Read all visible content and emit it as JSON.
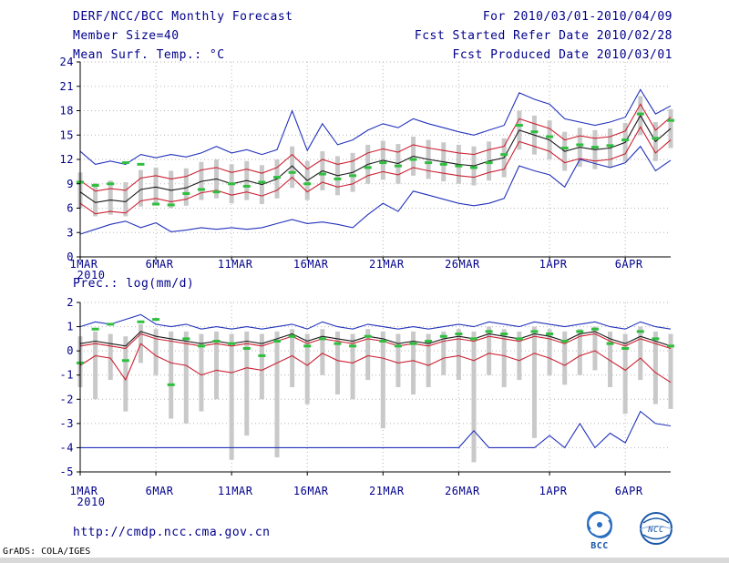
{
  "header": {
    "left": [
      "DERF/NCC/BCC Monthly Forecast",
      "Member Size=40",
      "Mean Surf. Temp.: °C"
    ],
    "right": [
      "For 2010/03/01-2010/04/09",
      "Fcst Started Refer Date 2010/02/28",
      "Fcst Produced Date 2010/03/01"
    ]
  },
  "panel2_title": "Prec.: log(mm/d)",
  "footer": {
    "url": "http://cmdp.ncc.cma.gov.cn",
    "credit": "GrADS: COLA/IGES",
    "bcc_label": "BCC",
    "ncc_label": "NCC"
  },
  "colors": {
    "blue": "#2233bb",
    "red": "#cc2233",
    "black": "#1a1a1a",
    "green": "#2fbf3f",
    "gray": "#c9c9c9",
    "text": "#00008b"
  },
  "chart_data": [
    {
      "type": "line",
      "title": "Mean Surf. Temp.: °C",
      "xlabel": "",
      "ylabel": "°C",
      "date_range": "2010/03/01-2010/04/09",
      "n_days": 40,
      "ylim": [
        0,
        24
      ],
      "yticks": [
        0,
        3,
        6,
        9,
        12,
        15,
        18,
        21,
        24
      ],
      "x_labels": [
        {
          "day": 1,
          "label": "1MAR",
          "sub": "2010"
        },
        {
          "day": 6,
          "label": "6MAR"
        },
        {
          "day": 11,
          "label": "11MAR"
        },
        {
          "day": 16,
          "label": "16MAR"
        },
        {
          "day": 21,
          "label": "21MAR"
        },
        {
          "day": 26,
          "label": "26MAR"
        },
        {
          "day": 32,
          "label": "1APR"
        },
        {
          "day": 37,
          "label": "6APR"
        }
      ],
      "grid": true,
      "legend": "none",
      "series": [
        {
          "name": "ensemble-max",
          "color": "blue",
          "values": [
            13.0,
            11.4,
            11.8,
            11.4,
            12.6,
            12.2,
            12.6,
            12.3,
            12.8,
            13.6,
            12.8,
            13.2,
            12.6,
            13.2,
            18.0,
            13.1,
            16.4,
            13.8,
            14.4,
            15.6,
            16.4,
            15.9,
            17.0,
            16.4,
            15.9,
            15.4,
            15.0,
            15.6,
            16.2,
            20.2,
            19.4,
            18.8,
            17.0,
            16.6,
            16.2,
            16.6,
            17.2,
            20.6,
            17.6,
            18.6
          ]
        },
        {
          "name": "upper-quartile",
          "color": "red",
          "values": [
            9.4,
            8.1,
            8.4,
            8.2,
            9.7,
            10.0,
            9.6,
            9.9,
            10.7,
            11.0,
            10.4,
            10.8,
            10.3,
            11.0,
            12.6,
            10.8,
            12.0,
            11.4,
            11.8,
            12.8,
            13.3,
            12.9,
            13.8,
            13.4,
            13.1,
            12.8,
            12.6,
            13.2,
            13.6,
            17.0,
            16.4,
            15.8,
            14.4,
            14.9,
            14.6,
            14.8,
            15.5,
            18.8,
            15.6,
            17.2
          ]
        },
        {
          "name": "ensemble-mean",
          "color": "black",
          "values": [
            8.0,
            6.7,
            7.0,
            6.8,
            8.3,
            8.6,
            8.2,
            8.5,
            9.3,
            9.6,
            9.0,
            9.4,
            8.9,
            9.6,
            11.2,
            9.4,
            10.6,
            10.0,
            10.4,
            11.4,
            11.9,
            11.5,
            12.4,
            12.0,
            11.7,
            11.4,
            11.2,
            11.8,
            12.2,
            15.6,
            15.0,
            14.4,
            13.0,
            13.5,
            13.2,
            13.4,
            14.1,
            17.4,
            14.2,
            15.8
          ]
        },
        {
          "name": "lower-quartile",
          "color": "red",
          "values": [
            6.6,
            5.3,
            5.6,
            5.4,
            6.9,
            7.2,
            6.8,
            7.1,
            7.9,
            8.2,
            7.6,
            8.0,
            7.5,
            8.2,
            9.8,
            8.0,
            9.2,
            8.6,
            9.0,
            10.0,
            10.5,
            10.1,
            11.0,
            10.6,
            10.3,
            10.0,
            9.8,
            10.4,
            10.8,
            14.2,
            13.6,
            13.0,
            11.6,
            12.1,
            11.8,
            12.0,
            12.7,
            16.0,
            12.8,
            14.4
          ]
        },
        {
          "name": "ensemble-min",
          "color": "blue",
          "values": [
            2.8,
            3.4,
            4.0,
            4.4,
            3.6,
            4.2,
            3.1,
            3.3,
            3.6,
            3.4,
            3.6,
            3.4,
            3.6,
            4.1,
            4.6,
            4.1,
            4.3,
            4.0,
            3.6,
            5.2,
            6.6,
            5.6,
            8.1,
            7.6,
            7.1,
            6.6,
            6.3,
            6.6,
            7.2,
            11.2,
            10.6,
            10.1,
            8.6,
            12.0,
            11.5,
            11.0,
            11.6,
            13.6,
            10.6,
            11.9
          ]
        }
      ],
      "spread_bars": {
        "low": [
          6.0,
          5.0,
          5.2,
          5.0,
          6.2,
          6.5,
          6.0,
          6.3,
          7.0,
          7.2,
          6.6,
          7.0,
          6.5,
          7.2,
          8.5,
          7.0,
          8.2,
          7.6,
          8.0,
          9.0,
          9.5,
          9.0,
          10.0,
          9.6,
          9.3,
          9.0,
          8.8,
          9.4,
          9.8,
          13.2,
          12.6,
          12.0,
          10.6,
          11.1,
          10.8,
          11.0,
          11.7,
          15.0,
          11.8,
          13.4
        ],
        "high": [
          10.4,
          9.1,
          9.4,
          9.2,
          10.7,
          11.0,
          10.6,
          10.9,
          11.7,
          12.0,
          11.4,
          11.8,
          11.3,
          12.0,
          13.6,
          11.8,
          13.0,
          12.4,
          12.8,
          13.8,
          14.3,
          13.9,
          14.8,
          14.4,
          14.1,
          13.8,
          13.6,
          14.2,
          14.6,
          18.0,
          17.4,
          16.8,
          15.4,
          15.9,
          15.6,
          15.8,
          16.5,
          19.8,
          16.6,
          18.2
        ]
      },
      "observations": {
        "name": "obs-green-dash",
        "color": "green",
        "values": [
          9.2,
          8.8,
          9.0,
          11.6,
          11.4,
          6.5,
          6.4,
          7.8,
          8.3,
          8.0,
          9.0,
          8.7,
          9.2,
          9.8,
          10.4,
          9.0,
          10.2,
          9.6,
          10.0,
          11.0,
          11.6,
          11.2,
          12.0,
          11.6,
          11.4,
          11.2,
          11.0,
          11.6,
          12.6,
          16.2,
          15.4,
          14.8,
          13.4,
          13.8,
          13.5,
          13.7,
          14.4,
          17.6,
          14.6,
          16.8
        ]
      }
    },
    {
      "type": "line",
      "title": "Prec.: log(mm/d)",
      "xlabel": "",
      "ylabel": "log(mm/d)",
      "date_range": "2010/03/01-2010/04/09",
      "n_days": 40,
      "ylim": [
        -5,
        2
      ],
      "yticks": [
        -5,
        -4,
        -3,
        -2,
        -1,
        0,
        1,
        2
      ],
      "x_labels": [
        {
          "day": 1,
          "label": "1MAR",
          "sub": "2010"
        },
        {
          "day": 6,
          "label": "6MAR"
        },
        {
          "day": 11,
          "label": "11MAR"
        },
        {
          "day": 16,
          "label": "16MAR"
        },
        {
          "day": 21,
          "label": "21MAR"
        },
        {
          "day": 26,
          "label": "26MAR"
        },
        {
          "day": 32,
          "label": "1APR"
        },
        {
          "day": 37,
          "label": "6APR"
        }
      ],
      "grid": true,
      "legend": "none",
      "series": [
        {
          "name": "ensemble-max",
          "color": "blue",
          "values": [
            1.0,
            1.2,
            1.1,
            1.3,
            1.5,
            1.1,
            1.0,
            1.1,
            0.9,
            1.0,
            0.9,
            1.0,
            0.9,
            1.0,
            1.1,
            0.9,
            1.2,
            1.0,
            0.9,
            1.1,
            1.0,
            0.9,
            1.0,
            0.9,
            1.0,
            1.1,
            1.0,
            1.2,
            1.1,
            1.0,
            1.2,
            1.1,
            1.0,
            1.1,
            1.2,
            1.0,
            0.9,
            1.2,
            1.0,
            0.9
          ]
        },
        {
          "name": "upper-quartile",
          "color": "red",
          "values": [
            0.2,
            0.3,
            0.2,
            0.1,
            0.7,
            0.5,
            0.4,
            0.3,
            0.2,
            0.3,
            0.2,
            0.3,
            0.2,
            0.4,
            0.6,
            0.3,
            0.5,
            0.4,
            0.3,
            0.5,
            0.4,
            0.2,
            0.3,
            0.2,
            0.4,
            0.5,
            0.4,
            0.6,
            0.5,
            0.4,
            0.6,
            0.5,
            0.3,
            0.6,
            0.7,
            0.4,
            0.2,
            0.5,
            0.3,
            0.1
          ]
        },
        {
          "name": "ensemble-mean",
          "color": "black",
          "values": [
            0.3,
            0.4,
            0.3,
            0.2,
            0.8,
            0.6,
            0.5,
            0.4,
            0.3,
            0.4,
            0.3,
            0.4,
            0.3,
            0.5,
            0.7,
            0.4,
            0.6,
            0.5,
            0.4,
            0.6,
            0.5,
            0.3,
            0.4,
            0.3,
            0.5,
            0.6,
            0.5,
            0.7,
            0.6,
            0.5,
            0.7,
            0.6,
            0.4,
            0.7,
            0.8,
            0.5,
            0.3,
            0.6,
            0.4,
            0.2
          ]
        },
        {
          "name": "lower-quartile",
          "color": "red",
          "values": [
            -0.6,
            -0.2,
            -0.3,
            -1.2,
            0.3,
            -0.2,
            -0.5,
            -0.6,
            -1.0,
            -0.8,
            -0.9,
            -0.7,
            -0.8,
            -0.5,
            -0.2,
            -0.6,
            -0.1,
            -0.4,
            -0.5,
            -0.2,
            -0.3,
            -0.5,
            -0.4,
            -0.6,
            -0.3,
            -0.2,
            -0.4,
            -0.1,
            -0.2,
            -0.4,
            -0.1,
            -0.3,
            -0.6,
            -0.2,
            0,
            -0.4,
            -0.8,
            -0.3,
            -0.9,
            -1.3
          ]
        },
        {
          "name": "ensemble-min",
          "color": "blue",
          "values": [
            -4,
            -4,
            -4,
            -4,
            -4,
            -4,
            -4,
            -4,
            -4,
            -4,
            -4,
            -4,
            -4,
            -4,
            -4,
            -4,
            -4,
            -4,
            -4,
            -4,
            -4,
            -4,
            -4,
            -4,
            -4,
            -4,
            -3.3,
            -4,
            -4,
            -4,
            -4,
            -3.5,
            -4,
            -3,
            -4,
            -3.4,
            -3.8,
            -2.5,
            -3,
            -3.1
          ]
        }
      ],
      "spread_bars": {
        "low": [
          -1.5,
          -2.0,
          -1.2,
          -2.5,
          -0.5,
          -1.0,
          -2.8,
          -3.0,
          -2.5,
          -2.0,
          -4.5,
          -3.5,
          -2.0,
          -4.4,
          -1.5,
          -2.2,
          -1.0,
          -1.8,
          -2.0,
          -1.2,
          -3.2,
          -1.5,
          -1.8,
          -1.5,
          -1.0,
          -1.2,
          -4.6,
          -1.0,
          -1.5,
          -1.2,
          -3.6,
          -1.0,
          -1.4,
          -1.0,
          -0.8,
          -1.5,
          -2.6,
          -1.2,
          -2.2,
          -2.4
        ],
        "high": [
          0.6,
          0.8,
          0.7,
          0.6,
          1.1,
          0.9,
          0.8,
          0.8,
          0.7,
          0.8,
          0.7,
          0.8,
          0.7,
          0.8,
          0.9,
          0.7,
          0.9,
          0.8,
          0.7,
          0.9,
          0.8,
          0.7,
          0.8,
          0.7,
          0.8,
          0.9,
          0.8,
          1.0,
          0.9,
          0.8,
          1.0,
          0.9,
          0.8,
          0.9,
          1.0,
          0.8,
          0.7,
          1.0,
          0.8,
          0.7
        ]
      },
      "observations": {
        "name": "obs-green-dash",
        "color": "green",
        "values": [
          -0.5,
          0.9,
          1.1,
          -0.4,
          1.2,
          1.3,
          -1.4,
          0.5,
          0.2,
          0.4,
          0.3,
          0.1,
          -0.2,
          0.4,
          0.6,
          0.2,
          0.5,
          0.3,
          0.2,
          0.6,
          0.4,
          0.2,
          0.3,
          0.4,
          0.6,
          0.7,
          0.5,
          0.8,
          0.7,
          0.5,
          0.8,
          0.7,
          0.4,
          0.8,
          0.9,
          0.3,
          0.1,
          0.8,
          0.5,
          0.2
        ]
      }
    }
  ]
}
